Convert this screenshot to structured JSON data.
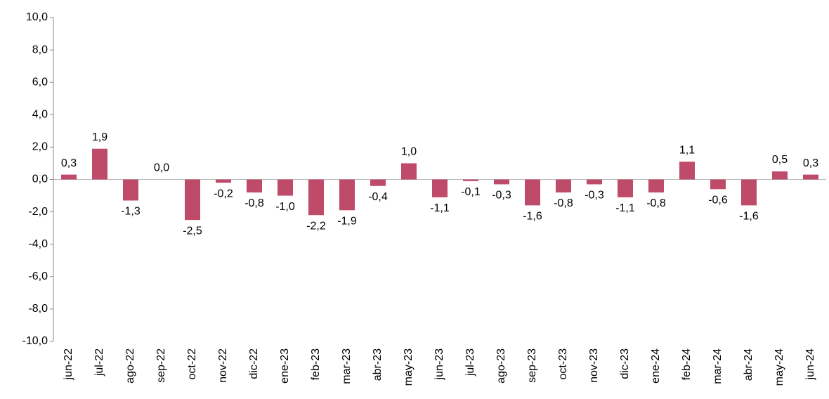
{
  "chart_data": {
    "type": "bar",
    "categories": [
      "jun-22",
      "jul-22",
      "ago-22",
      "sep-22",
      "oct-22",
      "nov-22",
      "dic-22",
      "ene-23",
      "feb-23",
      "mar-23",
      "abr-23",
      "may-23",
      "jun-23",
      "jul-23",
      "ago-23",
      "sep-23",
      "oct-23",
      "nov-23",
      "dic-23",
      "ene-24",
      "feb-24",
      "mar-24",
      "abr-24",
      "may-24",
      "jun-24"
    ],
    "values": [
      0.3,
      1.9,
      -1.3,
      0.0,
      -2.5,
      -0.2,
      -0.8,
      -1.0,
      -2.2,
      -1.9,
      -0.4,
      1.0,
      -1.1,
      -0.1,
      -0.3,
      -1.6,
      -0.8,
      -0.3,
      -1.1,
      -0.8,
      1.1,
      -0.6,
      -1.6,
      0.5,
      0.3
    ],
    "value_labels": [
      "0,3",
      "1,9",
      "-1,3",
      "0,0",
      "-2,5",
      "-0,2",
      "-0,8",
      "-1,0",
      "-2,2",
      "-1,9",
      "-0,4",
      "1,0",
      "-1,1",
      "-0,1",
      "-0,3",
      "-1,6",
      "-0,8",
      "-0,3",
      "-1,1",
      "-0,8",
      "1,1",
      "-0,6",
      "-1,6",
      "0,5",
      "0,3"
    ],
    "color": "#bf4b6a",
    "ylim": [
      -10,
      10
    ],
    "yticks": [
      {
        "value": -10,
        "label": "-10,0"
      },
      {
        "value": -8,
        "label": "-8,0"
      },
      {
        "value": -6,
        "label": "-6,0"
      },
      {
        "value": -4,
        "label": "-4,0"
      },
      {
        "value": -2,
        "label": "-2,0"
      },
      {
        "value": 0,
        "label": "0,0"
      },
      {
        "value": 2,
        "label": "2,0"
      },
      {
        "value": 4,
        "label": "4,0"
      },
      {
        "value": 6,
        "label": "6,0"
      },
      {
        "value": 8,
        "label": "8,0"
      },
      {
        "value": 10,
        "label": "10,0"
      }
    ]
  }
}
